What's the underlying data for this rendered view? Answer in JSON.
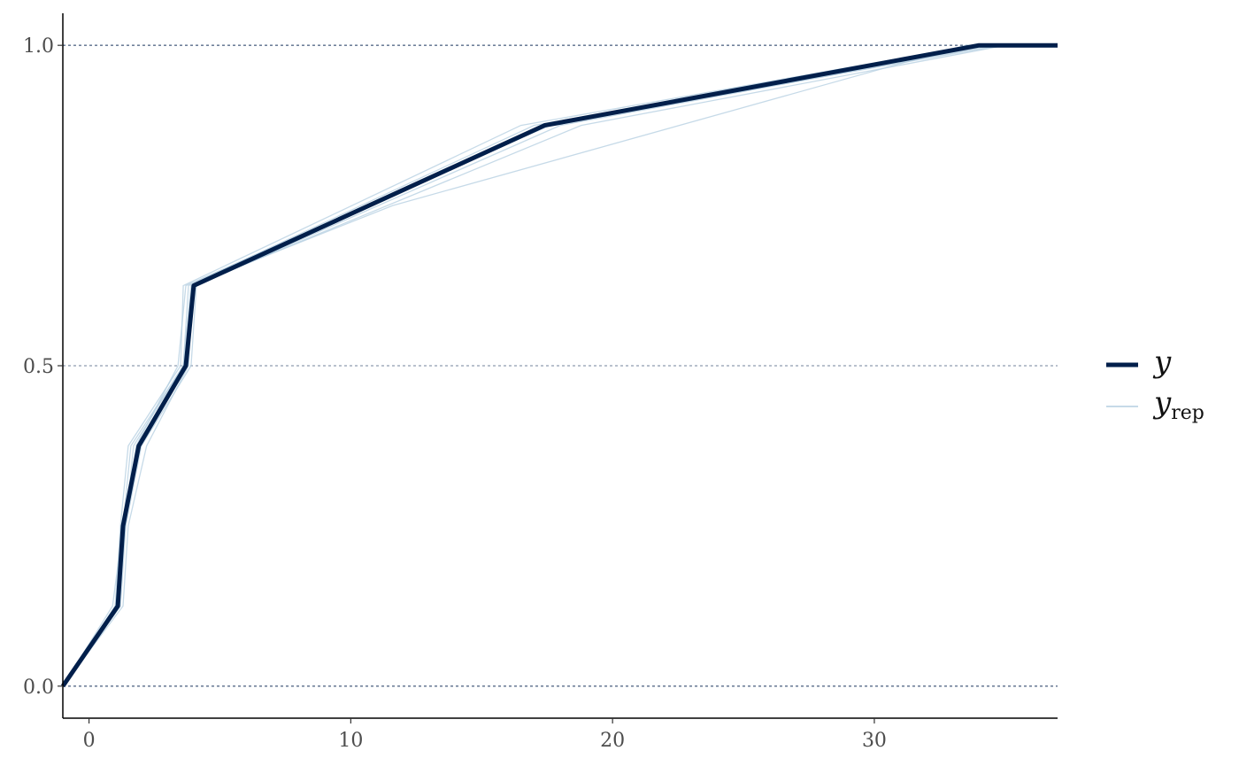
{
  "chart_data": {
    "type": "line",
    "title": "",
    "xlabel": "",
    "ylabel": "",
    "xlim": [
      -1,
      37
    ],
    "ylim": [
      -0.05,
      1.05
    ],
    "x_ticks": [
      0,
      10,
      20,
      30
    ],
    "x_tick_labels": [
      "0",
      "10",
      "20",
      "30"
    ],
    "y_ticks": [
      0,
      0.5,
      1
    ],
    "y_tick_labels": [
      "0.0",
      "0.5",
      "1.0"
    ],
    "reference_lines_y": [
      0,
      0.5,
      1
    ],
    "grid": false,
    "legend": "right",
    "colors": {
      "y": "#011f4b",
      "yrep": "#b3cde0",
      "refline": "#011f4b",
      "axis": "#000000"
    },
    "series": [
      {
        "name": "y",
        "role": "observed",
        "x": [
          -1,
          1.1,
          1.3,
          1.9,
          3.7,
          4.0,
          17.4,
          34.0,
          37
        ],
        "y": [
          0,
          0.125,
          0.25,
          0.375,
          0.5,
          0.625,
          0.875,
          1.0,
          1.0
        ]
      }
    ],
    "replicates": [
      {
        "x": [
          -1,
          1.0,
          1.2,
          1.5,
          3.5,
          3.6,
          16.5,
          33.8,
          37
        ],
        "y": [
          0,
          0.125,
          0.25,
          0.375,
          0.5,
          0.625,
          0.875,
          1.0,
          1.0
        ]
      },
      {
        "x": [
          -1,
          0.9,
          1.3,
          1.6,
          3.6,
          3.8,
          17.0,
          34.2,
          37
        ],
        "y": [
          0,
          0.125,
          0.25,
          0.375,
          0.5,
          0.625,
          0.875,
          1.0,
          1.0
        ]
      },
      {
        "x": [
          -1,
          1.2,
          1.4,
          2.0,
          3.9,
          4.1,
          18.0,
          34.5,
          37
        ],
        "y": [
          0,
          0.125,
          0.25,
          0.375,
          0.5,
          0.625,
          0.875,
          1.0,
          1.0
        ]
      },
      {
        "x": [
          -1,
          1.3,
          1.5,
          2.2,
          3.8,
          4.0,
          18.8,
          35.0,
          37
        ],
        "y": [
          0,
          0.125,
          0.25,
          0.375,
          0.5,
          0.625,
          0.875,
          1.0,
          1.0
        ]
      },
      {
        "x": [
          -1,
          1.1,
          1.4,
          1.8,
          3.4,
          3.7,
          17.6,
          34.8,
          37
        ],
        "y": [
          0,
          0.125,
          0.25,
          0.375,
          0.5,
          0.625,
          0.875,
          1.0,
          1.0
        ]
      },
      {
        "x": [
          -1,
          1.0,
          1.4,
          1.7,
          3.6,
          3.9,
          11.6,
          33.5,
          37
        ],
        "y": [
          0,
          0.125,
          0.25,
          0.375,
          0.5,
          0.625,
          0.75,
          1.0,
          1.0
        ]
      }
    ],
    "legend_entries": [
      {
        "label": "y",
        "subscript": ""
      },
      {
        "label": "y",
        "subscript": "rep"
      }
    ]
  }
}
